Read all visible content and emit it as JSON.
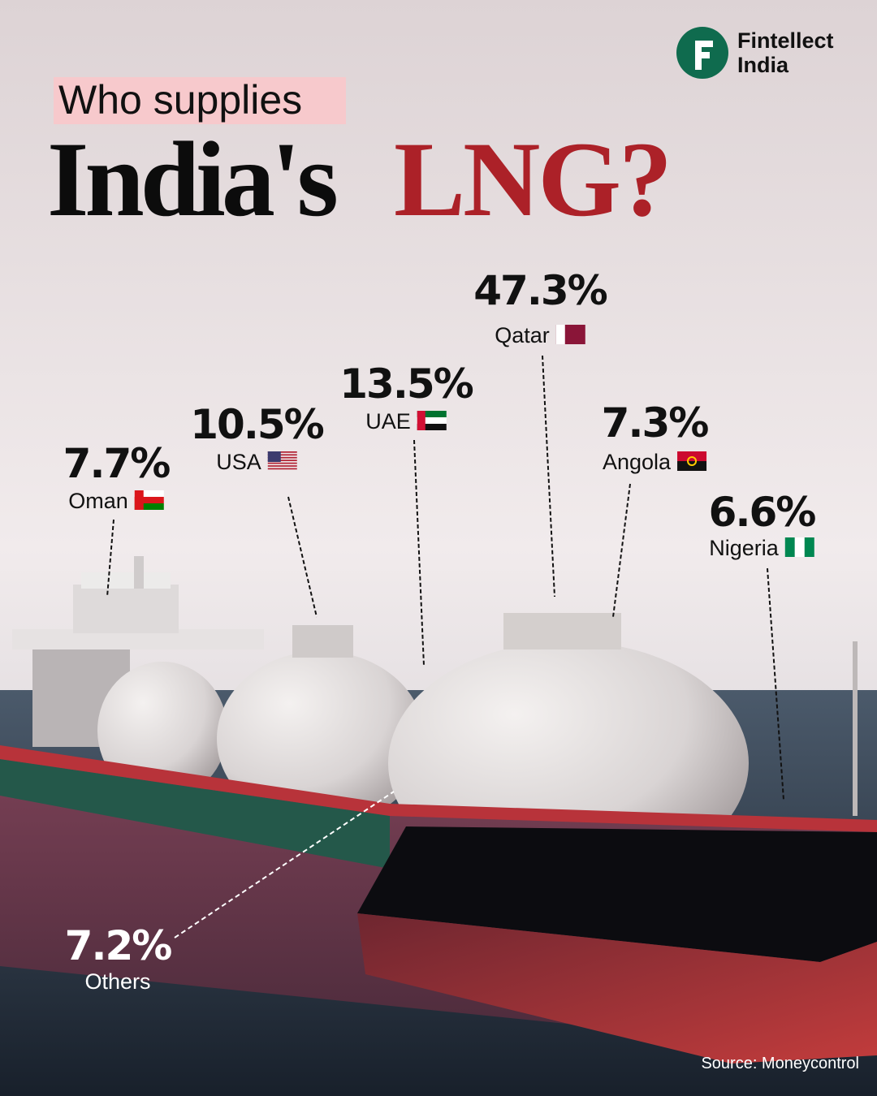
{
  "brand": {
    "line1": "Fintellect",
    "line2": "India"
  },
  "header": {
    "kicker": "Who supplies",
    "title_part1": "India's",
    "title_part2": "LNG?"
  },
  "suppliers": [
    {
      "share": "47.3%",
      "country": "Qatar"
    },
    {
      "share": "13.5%",
      "country": "UAE"
    },
    {
      "share": "10.5%",
      "country": "USA"
    },
    {
      "share": "7.7%",
      "country": "Oman"
    },
    {
      "share": "7.3%",
      "country": "Angola"
    },
    {
      "share": "6.6%",
      "country": "Nigeria"
    },
    {
      "share": "7.2%",
      "country": "Others"
    }
  ],
  "source": "Source: Moneycontrol"
}
